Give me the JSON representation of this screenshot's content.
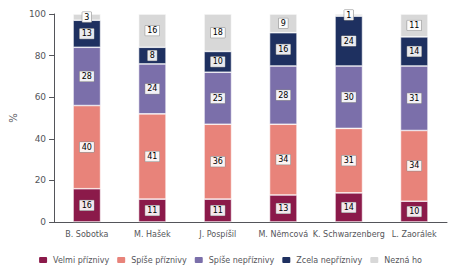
{
  "chart_data": {
    "type": "bar",
    "stacked": true,
    "data_labels": true,
    "grid": false,
    "legend": "bottom",
    "ylabel": "%",
    "categories": [
      "B. Sobotka",
      "M. Hašek",
      "J. Pospíšil",
      "M. Němcová",
      "K. Schwarzenberg",
      "L. Zaorálek"
    ],
    "series": [
      {
        "name": "Velmi příznivy",
        "color": "#8b1a4a",
        "values": [
          16,
          11,
          11,
          13,
          14,
          10
        ]
      },
      {
        "name": "Spíše příznivy",
        "color": "#e8837a",
        "values": [
          40,
          41,
          36,
          34,
          31,
          34
        ]
      },
      {
        "name": "Spíše nepříznivy",
        "color": "#7b6faa",
        "values": [
          28,
          24,
          25,
          28,
          30,
          31
        ]
      },
      {
        "name": "Zcela nepříznivy",
        "color": "#1e3060",
        "values": [
          13,
          8,
          10,
          16,
          24,
          14
        ]
      },
      {
        "name": "Nezná ho",
        "color": "#d8d8d8",
        "values": [
          3,
          16,
          18,
          9,
          1,
          11
        ]
      }
    ],
    "ylim": [
      0,
      100
    ],
    "yticks": [
      0,
      20,
      40,
      60,
      80,
      100
    ]
  }
}
